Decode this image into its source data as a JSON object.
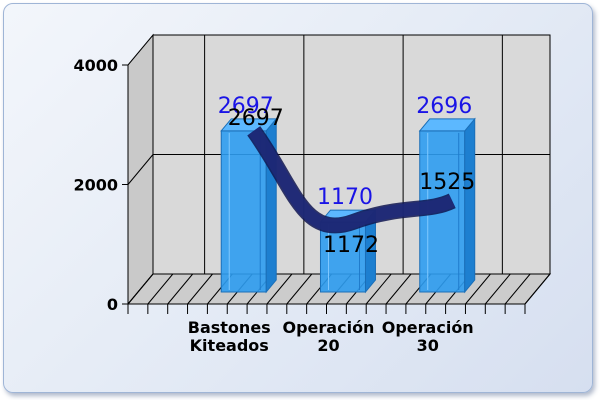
{
  "chart_data": {
    "type": "bar",
    "categories": [
      [
        "Bastones",
        "Kiteados"
      ],
      [
        "Operación",
        "20"
      ],
      [
        "Operación",
        "30"
      ]
    ],
    "series": [
      {
        "type": "bar",
        "values": [
          2697,
          1170,
          2696
        ],
        "color": "#2e9cf0"
      },
      {
        "type": "line",
        "values": [
          2697,
          1172,
          1525
        ],
        "color": "#1f2a7a"
      }
    ],
    "y_ticks": [
      0,
      2000,
      4000
    ],
    "ylim": [
      0,
      4000
    ],
    "grid": true,
    "style": "3d"
  }
}
